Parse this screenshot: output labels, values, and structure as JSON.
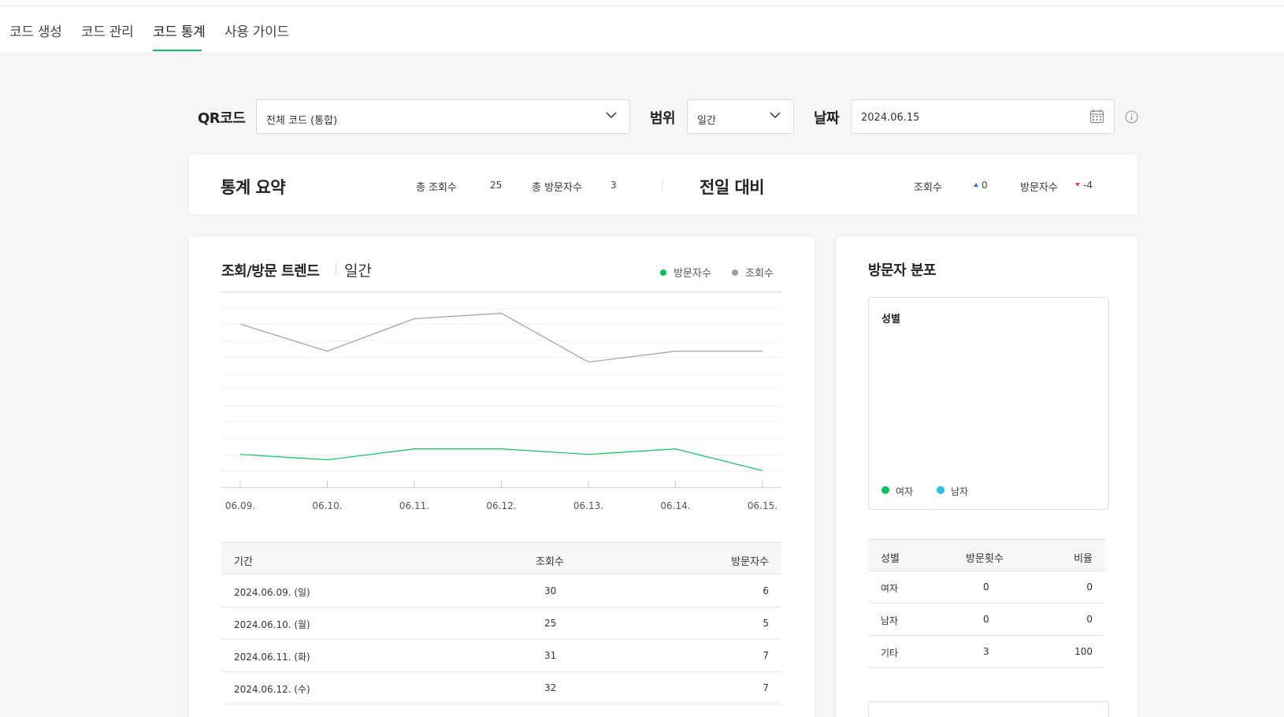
{
  "tabs": [
    "코드 생성",
    "코드 관리",
    "코드 통계",
    "사용 가이드"
  ],
  "active_tab": "코드 통계",
  "filters": {
    "qr_label": "QR코드",
    "qr_value": "전체 코드 (통합)",
    "range_label": "범위",
    "range_value": "일간",
    "date_label": "날짜",
    "date_value": "2024.06.15"
  },
  "summary": {
    "title": "통계 요약",
    "total_views_label": "총 조회수",
    "total_views": "25",
    "total_visitors_label": "총 방문자수",
    "total_visitors": "3",
    "compare_title": "전일 대비",
    "views_label": "조회수",
    "views_delta": "0",
    "visitors_label": "방문자수",
    "visitors_delta": "-4"
  },
  "trend": {
    "title": "조회/방문 트렌드",
    "period": "일간",
    "legend_visitors": "방문자수",
    "legend_views": "조회수"
  },
  "chart_data": {
    "type": "line",
    "x": [
      "06.09.",
      "06.10.",
      "06.11.",
      "06.12.",
      "06.13.",
      "06.14.",
      "06.15."
    ],
    "series": [
      {
        "name": "방문자수",
        "values": [
          6,
          5,
          7,
          7,
          6,
          7,
          3
        ],
        "color": "#03c75a"
      },
      {
        "name": "조회수",
        "values": [
          30,
          25,
          31,
          32,
          23,
          25,
          25
        ],
        "color": "#9e9e9e"
      }
    ],
    "ylim": [
      0,
      36
    ],
    "grid": true,
    "legend": "top-right"
  },
  "table": {
    "headers": [
      "기간",
      "조회수",
      "방문자수"
    ],
    "rows": [
      {
        "date": "2024.06.09. (일)",
        "views": "30",
        "visitors": "6"
      },
      {
        "date": "2024.06.10. (월)",
        "views": "25",
        "visitors": "5"
      },
      {
        "date": "2024.06.11. (화)",
        "views": "31",
        "visitors": "7"
      },
      {
        "date": "2024.06.12. (수)",
        "views": "32",
        "visitors": "7"
      }
    ]
  },
  "distribution": {
    "title": "방문자 분포",
    "gender_box_title": "성별",
    "legend_female": "여자",
    "legend_male": "남자",
    "female_color": "#03c75a",
    "male_color": "#27c1e6",
    "gender_table": {
      "headers": [
        "성별",
        "방문횟수",
        "비율"
      ],
      "rows": [
        {
          "label": "여자",
          "count": "0",
          "ratio": "0"
        },
        {
          "label": "남자",
          "count": "0",
          "ratio": "0"
        },
        {
          "label": "기타",
          "count": "3",
          "ratio": "100"
        }
      ]
    }
  }
}
